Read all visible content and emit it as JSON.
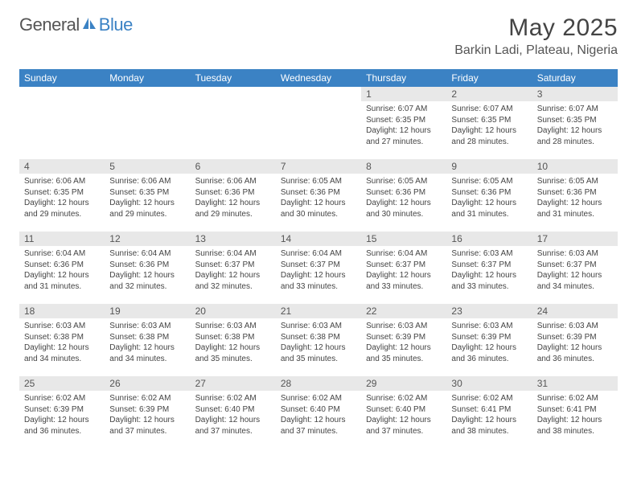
{
  "brand": {
    "name_part1": "General",
    "name_part2": "Blue",
    "logo_color": "#3b82c4"
  },
  "title": "May 2025",
  "location": "Barkin Ladi, Plateau, Nigeria",
  "colors": {
    "header_bg": "#3b82c4",
    "header_text": "#ffffff",
    "daynum_bg": "#e8e8e8",
    "body_text": "#444444"
  },
  "weekdays": [
    "Sunday",
    "Monday",
    "Tuesday",
    "Wednesday",
    "Thursday",
    "Friday",
    "Saturday"
  ],
  "first_weekday_index": 4,
  "days": [
    {
      "n": 1,
      "sunrise": "6:07 AM",
      "sunset": "6:35 PM",
      "daylight": "12 hours and 27 minutes."
    },
    {
      "n": 2,
      "sunrise": "6:07 AM",
      "sunset": "6:35 PM",
      "daylight": "12 hours and 28 minutes."
    },
    {
      "n": 3,
      "sunrise": "6:07 AM",
      "sunset": "6:35 PM",
      "daylight": "12 hours and 28 minutes."
    },
    {
      "n": 4,
      "sunrise": "6:06 AM",
      "sunset": "6:35 PM",
      "daylight": "12 hours and 29 minutes."
    },
    {
      "n": 5,
      "sunrise": "6:06 AM",
      "sunset": "6:35 PM",
      "daylight": "12 hours and 29 minutes."
    },
    {
      "n": 6,
      "sunrise": "6:06 AM",
      "sunset": "6:36 PM",
      "daylight": "12 hours and 29 minutes."
    },
    {
      "n": 7,
      "sunrise": "6:05 AM",
      "sunset": "6:36 PM",
      "daylight": "12 hours and 30 minutes."
    },
    {
      "n": 8,
      "sunrise": "6:05 AM",
      "sunset": "6:36 PM",
      "daylight": "12 hours and 30 minutes."
    },
    {
      "n": 9,
      "sunrise": "6:05 AM",
      "sunset": "6:36 PM",
      "daylight": "12 hours and 31 minutes."
    },
    {
      "n": 10,
      "sunrise": "6:05 AM",
      "sunset": "6:36 PM",
      "daylight": "12 hours and 31 minutes."
    },
    {
      "n": 11,
      "sunrise": "6:04 AM",
      "sunset": "6:36 PM",
      "daylight": "12 hours and 31 minutes."
    },
    {
      "n": 12,
      "sunrise": "6:04 AM",
      "sunset": "6:36 PM",
      "daylight": "12 hours and 32 minutes."
    },
    {
      "n": 13,
      "sunrise": "6:04 AM",
      "sunset": "6:37 PM",
      "daylight": "12 hours and 32 minutes."
    },
    {
      "n": 14,
      "sunrise": "6:04 AM",
      "sunset": "6:37 PM",
      "daylight": "12 hours and 33 minutes."
    },
    {
      "n": 15,
      "sunrise": "6:04 AM",
      "sunset": "6:37 PM",
      "daylight": "12 hours and 33 minutes."
    },
    {
      "n": 16,
      "sunrise": "6:03 AM",
      "sunset": "6:37 PM",
      "daylight": "12 hours and 33 minutes."
    },
    {
      "n": 17,
      "sunrise": "6:03 AM",
      "sunset": "6:37 PM",
      "daylight": "12 hours and 34 minutes."
    },
    {
      "n": 18,
      "sunrise": "6:03 AM",
      "sunset": "6:38 PM",
      "daylight": "12 hours and 34 minutes."
    },
    {
      "n": 19,
      "sunrise": "6:03 AM",
      "sunset": "6:38 PM",
      "daylight": "12 hours and 34 minutes."
    },
    {
      "n": 20,
      "sunrise": "6:03 AM",
      "sunset": "6:38 PM",
      "daylight": "12 hours and 35 minutes."
    },
    {
      "n": 21,
      "sunrise": "6:03 AM",
      "sunset": "6:38 PM",
      "daylight": "12 hours and 35 minutes."
    },
    {
      "n": 22,
      "sunrise": "6:03 AM",
      "sunset": "6:39 PM",
      "daylight": "12 hours and 35 minutes."
    },
    {
      "n": 23,
      "sunrise": "6:03 AM",
      "sunset": "6:39 PM",
      "daylight": "12 hours and 36 minutes."
    },
    {
      "n": 24,
      "sunrise": "6:03 AM",
      "sunset": "6:39 PM",
      "daylight": "12 hours and 36 minutes."
    },
    {
      "n": 25,
      "sunrise": "6:02 AM",
      "sunset": "6:39 PM",
      "daylight": "12 hours and 36 minutes."
    },
    {
      "n": 26,
      "sunrise": "6:02 AM",
      "sunset": "6:39 PM",
      "daylight": "12 hours and 37 minutes."
    },
    {
      "n": 27,
      "sunrise": "6:02 AM",
      "sunset": "6:40 PM",
      "daylight": "12 hours and 37 minutes."
    },
    {
      "n": 28,
      "sunrise": "6:02 AM",
      "sunset": "6:40 PM",
      "daylight": "12 hours and 37 minutes."
    },
    {
      "n": 29,
      "sunrise": "6:02 AM",
      "sunset": "6:40 PM",
      "daylight": "12 hours and 37 minutes."
    },
    {
      "n": 30,
      "sunrise": "6:02 AM",
      "sunset": "6:41 PM",
      "daylight": "12 hours and 38 minutes."
    },
    {
      "n": 31,
      "sunrise": "6:02 AM",
      "sunset": "6:41 PM",
      "daylight": "12 hours and 38 minutes."
    }
  ],
  "labels": {
    "sunrise": "Sunrise:",
    "sunset": "Sunset:",
    "daylight": "Daylight:"
  }
}
